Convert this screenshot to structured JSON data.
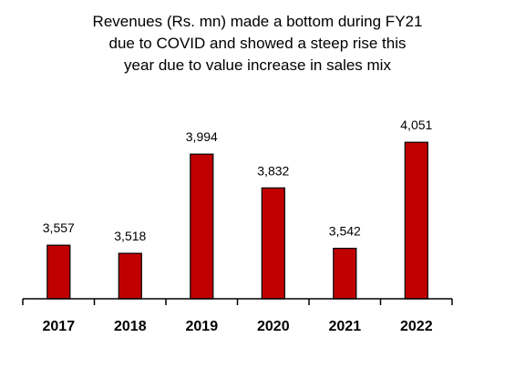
{
  "title_lines": [
    "Revenues (Rs. mn) made a bottom during FY21",
    "due to COVID and showed a steep rise this",
    "year due to value increase in sales mix"
  ],
  "chart_data": {
    "type": "bar",
    "title": "Revenues (Rs. mn) made a bottom during FY21 due to COVID and showed a steep rise this year due to value increase in sales mix",
    "categories": [
      "2017",
      "2018",
      "2019",
      "2020",
      "2021",
      "2022"
    ],
    "values": [
      3557,
      3518,
      3994,
      3832,
      3542,
      4051
    ],
    "data_labels": [
      "3,557",
      "3,518",
      "3,994",
      "3,832",
      "3,542",
      "4,051"
    ],
    "xlabel": "",
    "ylabel": "",
    "ylim": [
      3300,
      4100
    ],
    "grid": false,
    "legend": "none",
    "bar_color": "#C00000",
    "bar_stroke": "#000000"
  }
}
